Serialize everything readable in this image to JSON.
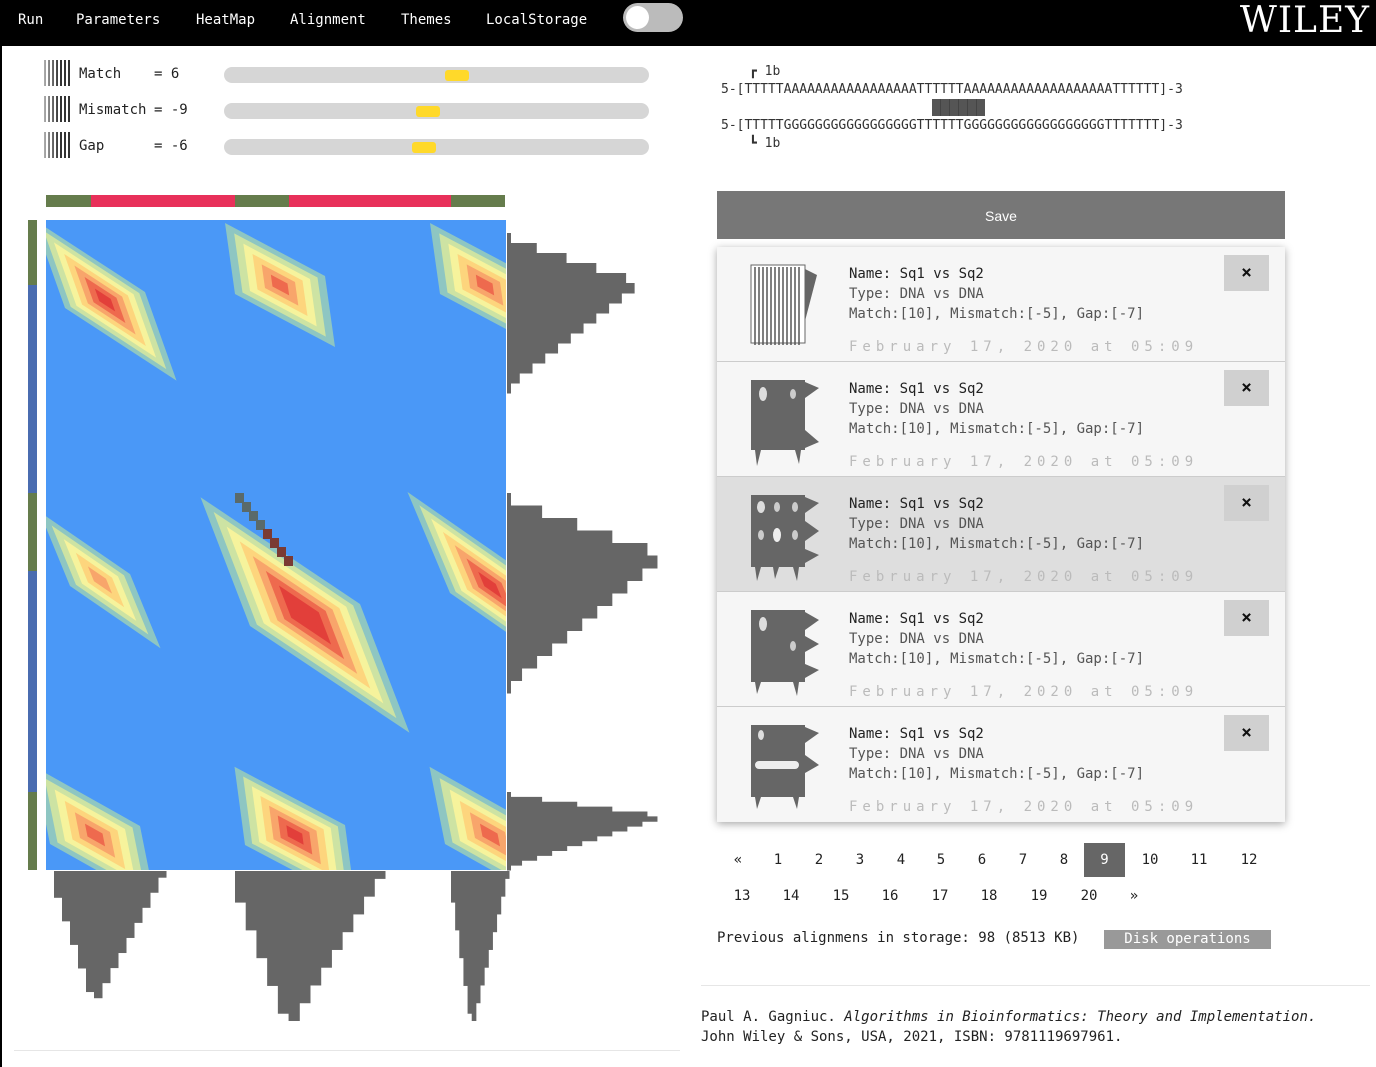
{
  "menu": {
    "items": [
      {
        "label": "Run"
      },
      {
        "label": "Parameters"
      },
      {
        "label": "HeatMap"
      },
      {
        "label": "Alignment"
      },
      {
        "label": "Themes"
      },
      {
        "label": "LocalStorage"
      }
    ],
    "logo": "WILEY"
  },
  "params": [
    {
      "label": "Match",
      "value": "= 6",
      "slider_fraction": 0.55
    },
    {
      "label": "Mismatch",
      "value": "= -9",
      "slider_fraction": 0.48
    },
    {
      "label": "Gap",
      "value": "= -6",
      "slider_fraction": 0.47
    }
  ],
  "alignment": {
    "top_start": "1b",
    "seq1": "5-[TTTTTAAAAAAAAAAAAAAAAATTTTTTAAAAAAAAAAAAAAAAAAATTTTTT]-3",
    "seq2": "5-[TTTTTGGGGGGGGGGGGGGGGGTTTTTTGGGGGGGGGGGGGGGGGGTTTTTTT]-3",
    "bottom_start": "1b"
  },
  "save_label": "Save",
  "cards": [
    {
      "name": "Name: Sq1 vs Sq2",
      "type": "Type: DNA vs DNA",
      "params": "Match:[10], Mismatch:[-5], Gap:[-7]",
      "date": "February 17, 2020 at 05:09",
      "close": "×",
      "thumb": "striped-matrix"
    },
    {
      "name": "Name: Sq1 vs Sq2",
      "type": "Type: DNA vs DNA",
      "params": "Match:[10], Mismatch:[-5], Gap:[-7]",
      "date": "February 17, 2020 at 05:09",
      "close": "×",
      "thumb": "two-spots-matrix"
    },
    {
      "name": "Name: Sq1 vs Sq2",
      "type": "Type: DNA vs DNA",
      "params": "Match:[10], Mismatch:[-5], Gap:[-7]",
      "date": "February 17, 2020 at 05:09",
      "close": "×",
      "thumb": "six-spots-matrix"
    },
    {
      "name": "Name: Sq1 vs Sq2",
      "type": "Type: DNA vs DNA",
      "params": "Match:[10], Mismatch:[-5], Gap:[-7]",
      "date": "February 17, 2020 at 05:09",
      "close": "×",
      "thumb": "three-spots-matrix"
    },
    {
      "name": "Name: Sq1 vs Sq2",
      "type": "Type: DNA vs DNA",
      "params": "Match:[10], Mismatch:[-5], Gap:[-7]",
      "date": "February 17, 2020 at 05:09",
      "close": "×",
      "thumb": "band-matrix"
    }
  ],
  "pagination": {
    "prev": "«",
    "next": "»",
    "pages": [
      "1",
      "2",
      "3",
      "4",
      "5",
      "6",
      "7",
      "8",
      "9",
      "10",
      "11",
      "12",
      "13",
      "14",
      "15",
      "16",
      "17",
      "18",
      "19",
      "20"
    ],
    "active": "9"
  },
  "storage": {
    "text": "Previous alignmens in storage: 98 (8513 KB)",
    "disk_button": "Disk operations"
  },
  "citation": {
    "author": "Paul A. Gagniuc. ",
    "title": "Algorithms in Bioinformatics: Theory and Implementation.",
    "rest": "John Wiley & Sons, USA, 2021, ISBN: 9781119697961."
  },
  "colors": {
    "heatmap_background": "#4a98f7",
    "green_segment": "#657c4c",
    "red_segment": "#e8305a",
    "blue_segment": "#4a6cb0",
    "histogram": "#666666",
    "slider_thumb": "#ffd92a"
  }
}
